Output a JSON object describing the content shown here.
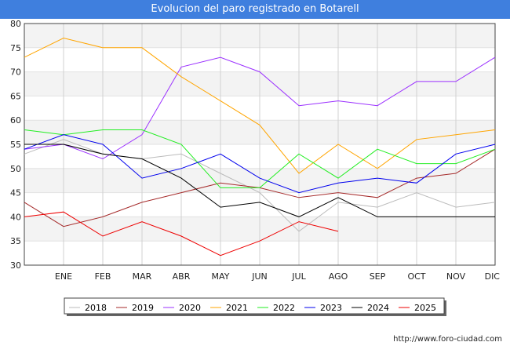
{
  "chart_data": {
    "type": "line",
    "title": "Evolucion del paro registrado en Botarell",
    "categories": [
      "",
      "ENE",
      "FEB",
      "MAR",
      "ABR",
      "MAY",
      "JUN",
      "JUL",
      "AGO",
      "SEP",
      "OCT",
      "NOV",
      "DIC"
    ],
    "ylim": [
      30,
      80
    ],
    "yticks": [
      30,
      35,
      40,
      45,
      50,
      55,
      60,
      65,
      70,
      75,
      80
    ],
    "grid": true,
    "legend_position": "bottom",
    "series": [
      {
        "name": "2018",
        "color": "#bbbbbb",
        "values": [
          53,
          56,
          53,
          52,
          53,
          49,
          45,
          37,
          43,
          42,
          45,
          42,
          43
        ]
      },
      {
        "name": "2019",
        "color": "#a52a2a",
        "values": [
          43,
          38,
          40,
          43,
          45,
          47,
          46,
          44,
          45,
          44,
          48,
          49,
          54
        ]
      },
      {
        "name": "2020",
        "color": "#9b30ff",
        "values": [
          54,
          55,
          52,
          57,
          71,
          73,
          70,
          63,
          64,
          63,
          68,
          68,
          73
        ]
      },
      {
        "name": "2021",
        "color": "#ffa500",
        "values": [
          73,
          77,
          75,
          75,
          69,
          64,
          59,
          49,
          55,
          50,
          56,
          57,
          58
        ]
      },
      {
        "name": "2022",
        "color": "#22ee22",
        "values": [
          58,
          57,
          58,
          58,
          55,
          46,
          46,
          53,
          48,
          54,
          51,
          51,
          54
        ]
      },
      {
        "name": "2023",
        "color": "#0000ee",
        "values": [
          54,
          57,
          55,
          48,
          50,
          53,
          48,
          45,
          47,
          48,
          47,
          53,
          55
        ]
      },
      {
        "name": "2024",
        "color": "#000000",
        "values": [
          55,
          55,
          53,
          52,
          48,
          42,
          43,
          40,
          44,
          40,
          40,
          40,
          40
        ]
      },
      {
        "name": "2025",
        "color": "#ee0000",
        "values": [
          40,
          41,
          36,
          39,
          36,
          32,
          35,
          39,
          37,
          null,
          null,
          null,
          null
        ]
      }
    ]
  },
  "footer": {
    "url": "http://www.foro-ciudad.com"
  }
}
